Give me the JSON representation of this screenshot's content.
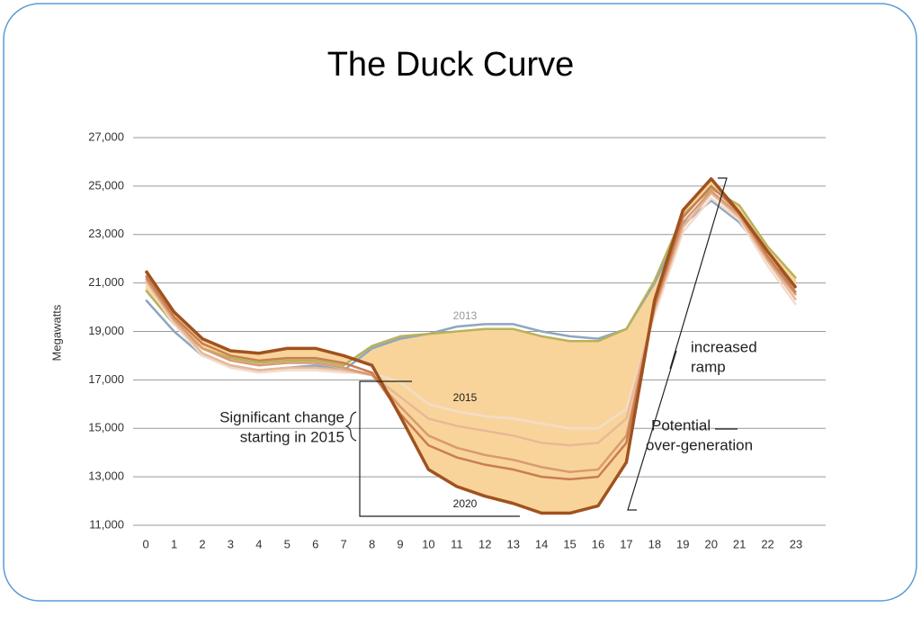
{
  "chart_data": {
    "type": "line",
    "title": "The Duck Curve",
    "y_label": "Megawatts",
    "x": [
      0,
      1,
      2,
      3,
      4,
      5,
      6,
      7,
      8,
      9,
      10,
      11,
      12,
      13,
      14,
      15,
      16,
      17,
      18,
      19,
      20,
      21,
      22,
      23
    ],
    "xlim": [
      -0.45,
      24.05
    ],
    "xticks": [
      0,
      1,
      2,
      3,
      4,
      5,
      6,
      7,
      8,
      9,
      10,
      11,
      12,
      13,
      14,
      15,
      16,
      17,
      18,
      19,
      20,
      21,
      22,
      23
    ],
    "ylim": [
      11000,
      27000
    ],
    "yticks": [
      {
        "value": 11000,
        "label": "11,000"
      },
      {
        "value": 13000,
        "label": "13,000"
      },
      {
        "value": 15000,
        "label": "15,000"
      },
      {
        "value": 17000,
        "label": "17,000"
      },
      {
        "value": 19000,
        "label": "19,000"
      },
      {
        "value": 21000,
        "label": "21,000"
      },
      {
        "value": 23000,
        "label": "23,000"
      },
      {
        "value": 25000,
        "label": "25,000"
      },
      {
        "value": 27000,
        "label": "27,000"
      }
    ],
    "grid": true,
    "area_color": "#f9d49a",
    "series": [
      {
        "color": "#8ea6c0",
        "values": [
          20300,
          19000,
          18000,
          17600,
          17400,
          17500,
          17600,
          17400,
          18300,
          18700,
          18900,
          19200,
          19300,
          19300,
          19000,
          18800,
          18700,
          19100,
          21000,
          23400,
          24400,
          23500,
          22000,
          20800
        ]
      },
      {
        "name": "2013",
        "color": "#b8b25a",
        "values": [
          20700,
          19300,
          18300,
          17900,
          17700,
          17800,
          17800,
          17600,
          18400,
          18800,
          18900,
          19000,
          19100,
          19100,
          18800,
          18600,
          18600,
          19100,
          21100,
          23800,
          24900,
          24200,
          22500,
          21200
        ]
      },
      {
        "name": "2015",
        "color": "#f3dccb",
        "values": [
          21000,
          19300,
          18000,
          17500,
          17300,
          17400,
          17400,
          17300,
          17300,
          16900,
          16000,
          15700,
          15500,
          15400,
          15200,
          15000,
          15000,
          15800,
          19700,
          23100,
          24500,
          23600,
          21700,
          20100
        ]
      },
      {
        "color": "#e8b898",
        "values": [
          21100,
          19400,
          18100,
          17600,
          17400,
          17500,
          17500,
          17400,
          17200,
          16300,
          15400,
          15100,
          14900,
          14700,
          14400,
          14300,
          14400,
          15400,
          19900,
          23300,
          24700,
          23700,
          21900,
          20300
        ]
      },
      {
        "color": "#d99a72",
        "values": [
          21200,
          19500,
          18300,
          17800,
          17600,
          17700,
          17700,
          17500,
          17200,
          15900,
          14700,
          14200,
          13900,
          13700,
          13400,
          13200,
          13300,
          14700,
          20000,
          23500,
          24800,
          23800,
          22000,
          20500
        ]
      },
      {
        "color": "#c87d52",
        "values": [
          21300,
          19600,
          18500,
          18000,
          17800,
          17900,
          17900,
          17700,
          17300,
          15600,
          14300,
          13800,
          13500,
          13300,
          13000,
          12900,
          13000,
          14400,
          20100,
          23700,
          25000,
          23900,
          22100,
          20600
        ]
      },
      {
        "name": "2020",
        "color": "#a0521f",
        "values": [
          21500,
          19800,
          18700,
          18200,
          18100,
          18300,
          18300,
          18000,
          17600,
          15500,
          13300,
          12600,
          12200,
          11900,
          11500,
          11500,
          11800,
          13600,
          20300,
          24000,
          25300,
          23900,
          22300,
          20800
        ]
      }
    ],
    "annotations": [
      "Significant change",
      "starting in 2015",
      "increased",
      "ramp",
      "Potential",
      "over-generation"
    ]
  }
}
